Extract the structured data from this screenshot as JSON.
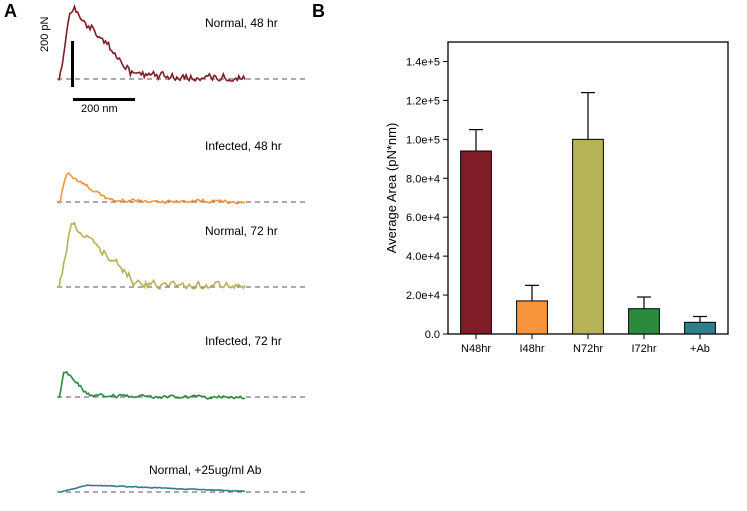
{
  "panelA": {
    "label": "A",
    "traces": [
      {
        "label": "Normal, 48 hr",
        "color": "#7f1d28",
        "peak_pN": 320,
        "width_nm": 230,
        "tail_nm": 600
      },
      {
        "label": "Infected, 48 hr",
        "color": "#f7943c",
        "peak_pN": 130,
        "width_nm": 150,
        "tail_nm": 600
      },
      {
        "label": "Normal, 72 hr",
        "color": "#b6b257",
        "peak_pN": 280,
        "width_nm": 240,
        "tail_nm": 600
      },
      {
        "label": "Infected, 72 hr",
        "color": "#2b8a3c",
        "peak_pN": 120,
        "width_nm": 90,
        "tail_nm": 600
      },
      {
        "label": "Normal, +25ug/ml Ab",
        "color": "#2f7e8b",
        "peak_pN": 30,
        "width_nm": 600,
        "tail_nm": 600
      }
    ],
    "scale": {
      "pN": 200,
      "nm": 200,
      "pN_label": "200 pN",
      "nm_label": "200 nm"
    }
  },
  "panelB": {
    "label": "B",
    "type": "bar",
    "ylabel": "Average Area (pN*nm)",
    "ylim": [
      0,
      150000
    ],
    "yticks": [
      0,
      20000,
      40000,
      60000,
      80000,
      100000,
      120000,
      140000
    ],
    "ytick_labels": [
      "0.0",
      "2.0e+4",
      "4.0e+4",
      "6.0e+4",
      "8.0e+4",
      "1.0e+5",
      "1.2e+5",
      "1.4e+5"
    ],
    "categories": [
      "N48hr",
      "I48hr",
      "N72hr",
      "I72hr",
      "+Ab"
    ],
    "values": [
      94000,
      17000,
      100000,
      13000,
      6000
    ],
    "errors": [
      11000,
      8000,
      24000,
      6000,
      3000
    ],
    "bar_colors": [
      "#7f1d28",
      "#f7943c",
      "#b6b257",
      "#2b8a3c",
      "#2f7e8b"
    ],
    "background_color": "#ffffff",
    "bar_width": 0.55,
    "axis_color": "#000000",
    "label_fontsize": 12
  }
}
